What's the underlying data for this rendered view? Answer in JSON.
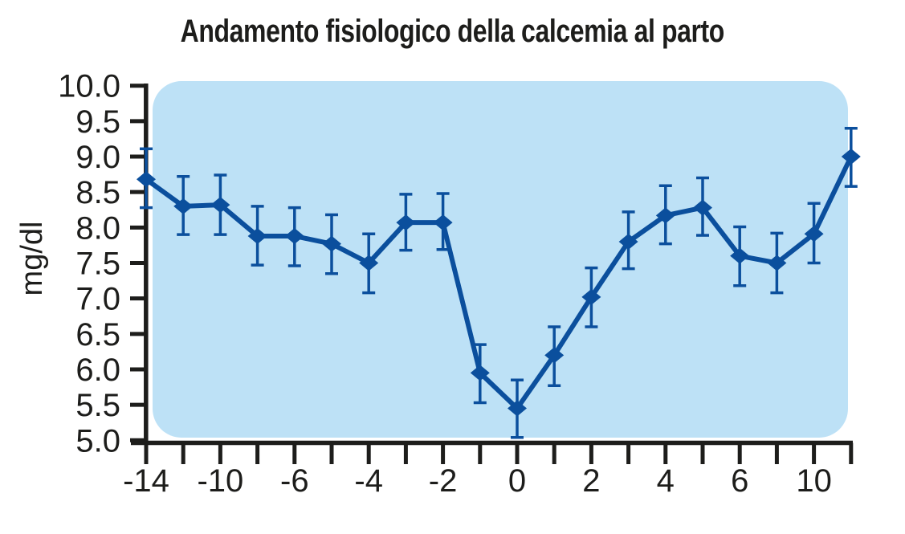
{
  "chart_data": {
    "type": "line",
    "title": "Andamento fisiologico della calcemia al parto",
    "xlabel": "",
    "ylabel": "mg/dl",
    "ylim": [
      5.0,
      10.0
    ],
    "y_tick_labels": [
      "10.0",
      "9.5",
      "9.0",
      "8.5",
      "8.0",
      "7.5",
      "7.0",
      "6.5",
      "6.0",
      "5.5",
      "5.0"
    ],
    "x_tick_labels": [
      "-14",
      "",
      "-10",
      "",
      "-6",
      "",
      "-4",
      "",
      "-2",
      "",
      "0",
      "",
      "2",
      "",
      "4",
      "",
      "6",
      "",
      "10",
      ""
    ],
    "grid": false,
    "legend": false,
    "marker": "diamond",
    "error_bars": true,
    "series": [
      {
        "name": "calcemia",
        "values": [
          8.68,
          8.3,
          8.32,
          7.88,
          7.88,
          7.77,
          7.5,
          8.07,
          8.07,
          5.95,
          5.45,
          6.2,
          7.02,
          7.8,
          8.17,
          8.28,
          7.6,
          7.5,
          7.91,
          9.0
        ],
        "error_plus": [
          0.43,
          0.42,
          0.42,
          0.42,
          0.4,
          0.41,
          0.41,
          0.4,
          0.41,
          0.4,
          0.4,
          0.4,
          0.41,
          0.42,
          0.42,
          0.42,
          0.41,
          0.42,
          0.43,
          0.4
        ],
        "error_minus": [
          0.4,
          0.4,
          0.42,
          0.41,
          0.42,
          0.42,
          0.42,
          0.39,
          0.38,
          0.42,
          0.41,
          0.43,
          0.42,
          0.38,
          0.4,
          0.39,
          0.42,
          0.42,
          0.41,
          0.42
        ]
      }
    ]
  },
  "colors": {
    "line": "#0b4f9d",
    "marker": "#0b4f9d",
    "error_bar": "#0b4f9d",
    "plot_background": "#bde1f6",
    "axis": "#1d1d1b",
    "text": "#1d1d1b",
    "page_background": "#ffffff"
  }
}
